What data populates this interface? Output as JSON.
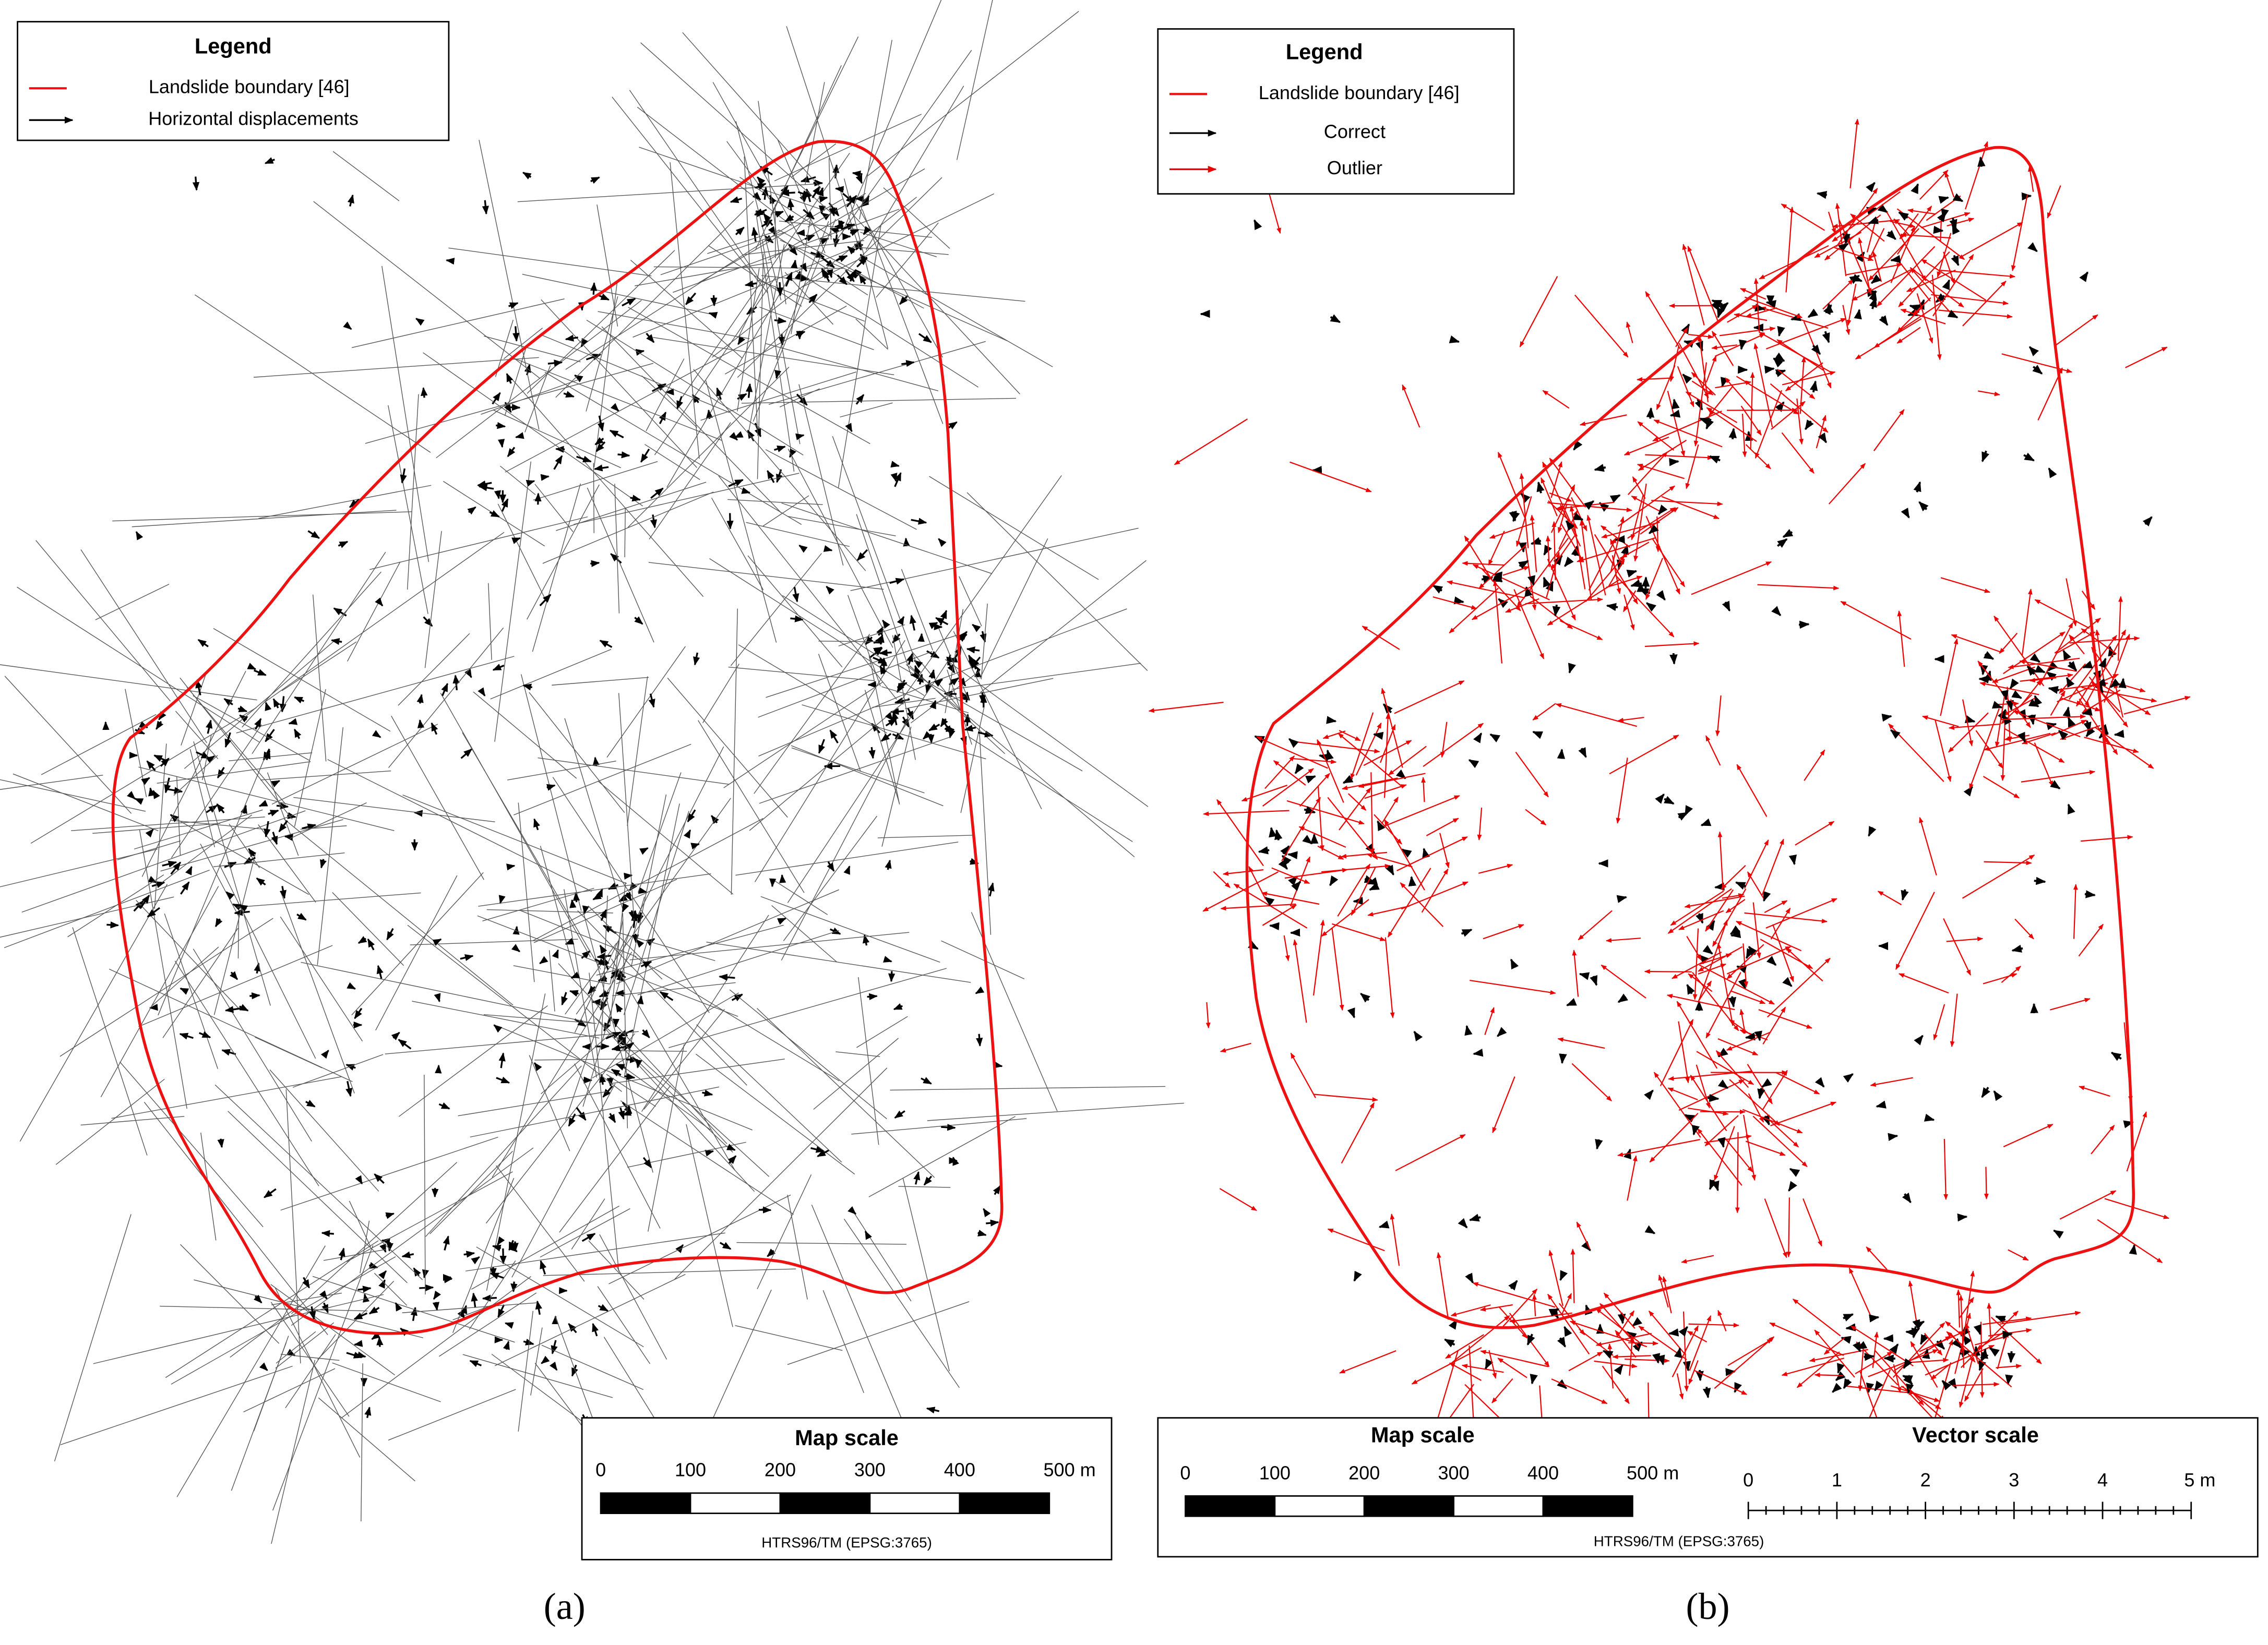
{
  "panels": [
    {
      "label": "(a)",
      "legend": {
        "title": "Legend",
        "items": [
          "Landslide boundary [46]",
          "Horizontal displacements"
        ]
      },
      "map_scale": {
        "title": "Map scale",
        "ticks": [
          "0",
          "100",
          "200",
          "300",
          "400",
          "500 m"
        ],
        "crs": "HTRS96/TM (EPSG:3765)"
      }
    },
    {
      "label": "(b)",
      "legend": {
        "title": "Legend",
        "items": [
          "Landslide boundary [46]",
          "Correct",
          "Outlier"
        ]
      },
      "map_scale": {
        "title": "Map scale",
        "ticks": [
          "0",
          "100",
          "200",
          "300",
          "400",
          "500 m"
        ],
        "crs": "HTRS96/TM (EPSG:3765)"
      },
      "vector_scale": {
        "title": "Vector scale",
        "ticks": [
          "0",
          "1",
          "2",
          "3",
          "4",
          "5 m"
        ]
      }
    }
  ]
}
